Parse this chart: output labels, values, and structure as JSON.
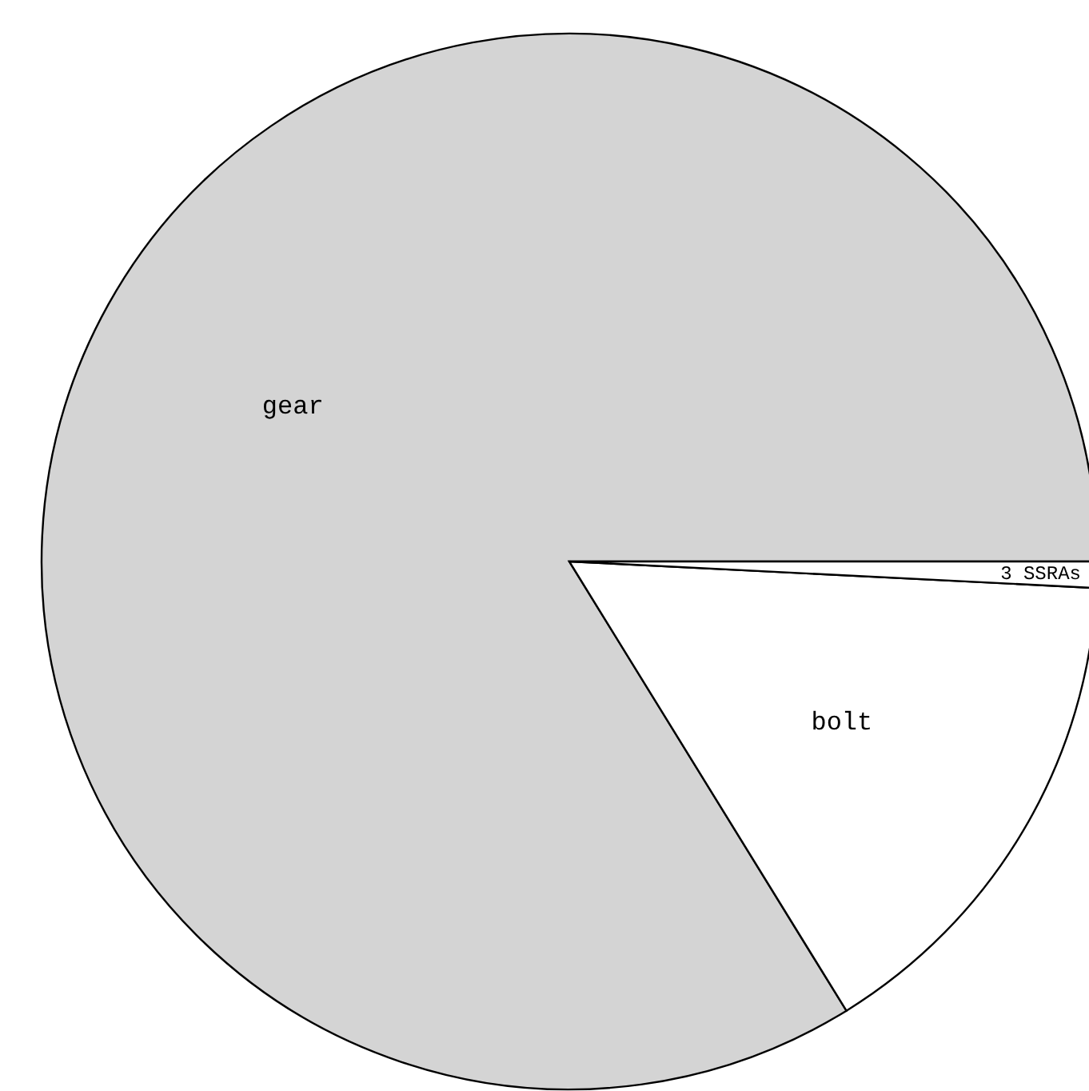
{
  "chart_data": {
    "type": "pie",
    "categories": [
      "gear",
      "bolt",
      "3 SSRAs"
    ],
    "values": [
      83.8,
      15.4,
      0.8
    ],
    "colors": [
      "#d4d4d4",
      "#ffffff",
      "#ffffff"
    ],
    "legend": false
  }
}
